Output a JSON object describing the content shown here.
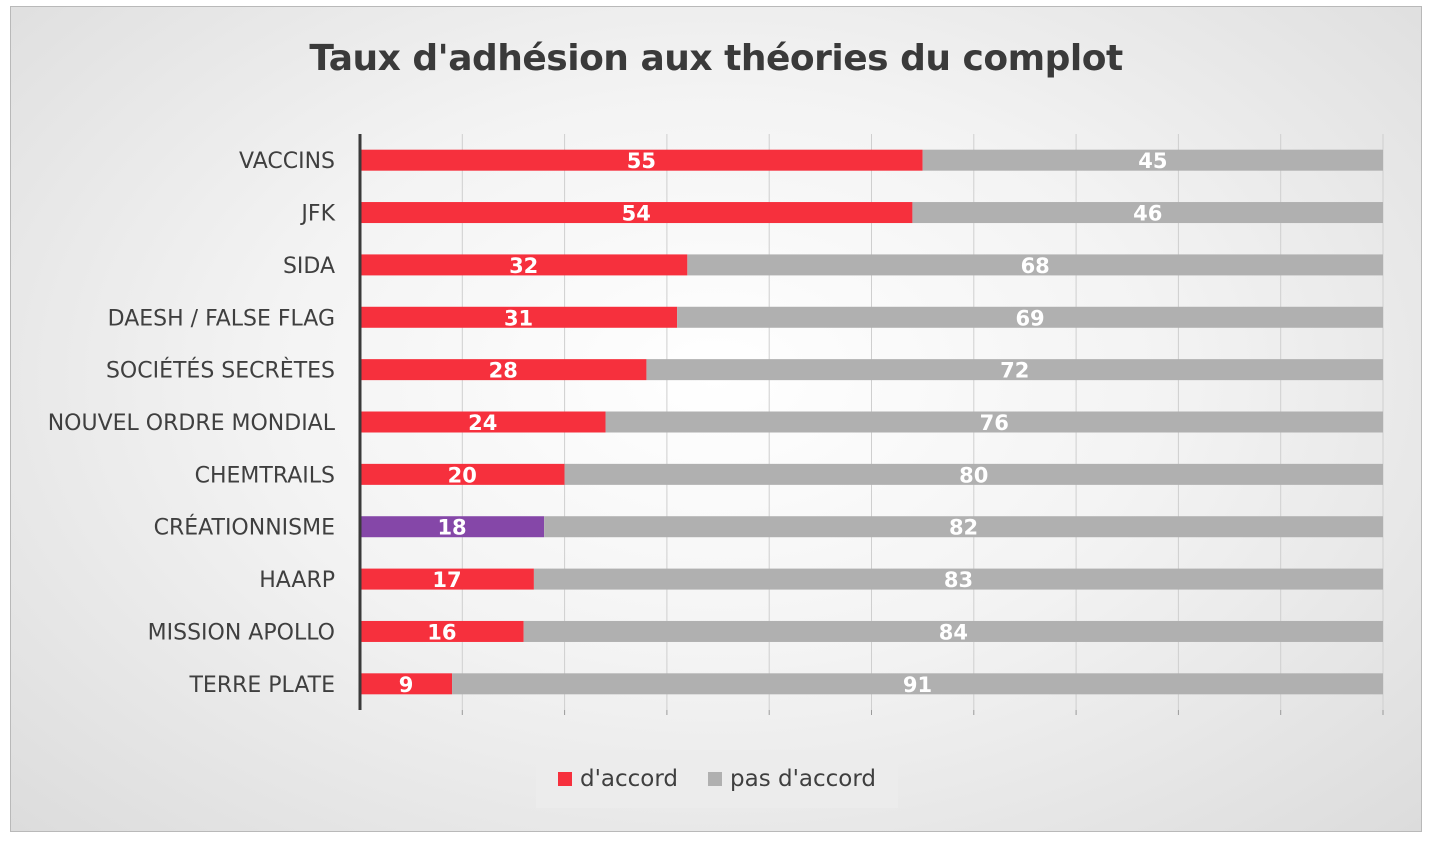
{
  "chart_data": {
    "type": "bar",
    "orientation": "horizontal",
    "stacked": true,
    "title": "Taux d'adhésion aux théories du complot",
    "categories": [
      "VACCINS",
      "JFK",
      "SIDA",
      "DAESH / FALSE FLAG",
      "SOCIÉTÉS SECRÈTES",
      "NOUVEL ORDRE MONDIAL",
      "CHEMTRAILS",
      "CRÉATIONNISME",
      "HAARP",
      "MISSION APOLLO",
      "TERRE PLATE"
    ],
    "series": [
      {
        "name": "d'accord",
        "color": "#f6303d",
        "values": [
          55,
          54,
          32,
          31,
          28,
          24,
          20,
          18,
          17,
          16,
          9
        ]
      },
      {
        "name": "pas d'accord",
        "color": "#b0b0b0",
        "values": [
          45,
          46,
          68,
          69,
          72,
          76,
          80,
          82,
          83,
          84,
          91
        ]
      }
    ],
    "highlight": {
      "category": "CRÉATIONNISME",
      "series": "d'accord",
      "color": "#8547a8"
    },
    "xlim": [
      0,
      100
    ],
    "grid": true,
    "legend_position": "bottom"
  }
}
